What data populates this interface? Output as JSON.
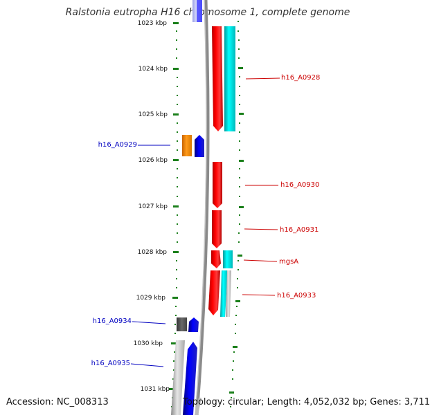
{
  "title": "Ralstonia eutropha H16 chromosome 1, complete genome",
  "footer": {
    "accession": "Accession: NC_008313",
    "summary": "Topology: circular; Length: 4,052,032 bp; Genes: 3,711"
  },
  "colors": {
    "tick_green": "#1a7f1a",
    "backbone": "#888888",
    "red": "#ff0000",
    "cyan": "#00e0e0",
    "blue": "#0000ff",
    "orange": "#ff8c00",
    "label_blue": "#0000c0",
    "label_red": "#cc0000"
  },
  "scale_labels": [
    "1023 kbp",
    "1024 kbp",
    "1025 kbp",
    "1026 kbp",
    "1027 kbp",
    "1028 kbp",
    "1029 kbp",
    "1030 kbp",
    "1031 kbp"
  ],
  "gene_labels_left": [
    "h16_A0929",
    "h16_A0934",
    "h16_A0935"
  ],
  "gene_labels_right": [
    "h16_A0928",
    "h16_A0930",
    "h16_A0931",
    "mgsA",
    "h16_A0933"
  ]
}
